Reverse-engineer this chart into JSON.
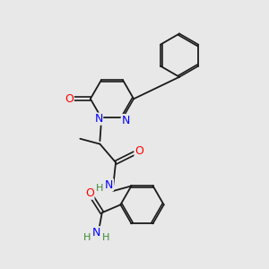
{
  "background_color": "#e8e8e8",
  "bond_color": "#1a1a1a",
  "atom_colors": {
    "N": "#0000ff",
    "O": "#ff0000",
    "H": "#3a8a3a",
    "C": "#1a1a1a"
  },
  "font_size_atom": 9,
  "figure_size": [
    3.0,
    3.0
  ],
  "dpi": 100
}
